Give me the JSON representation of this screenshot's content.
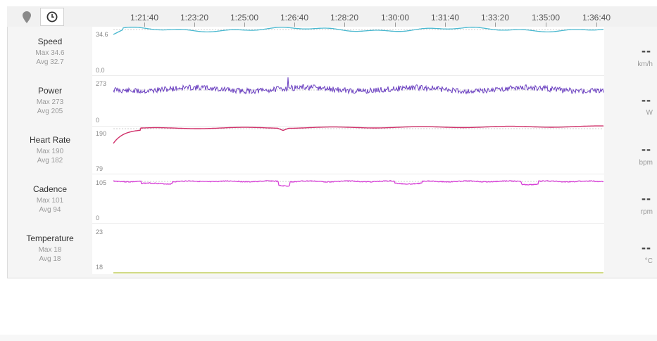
{
  "toolbar": {
    "map_button_icon": "map-pin-icon",
    "time_button_icon": "clock-icon"
  },
  "timeline": {
    "ticks": [
      "1:21:40",
      "1:23:20",
      "1:25:00",
      "1:26:40",
      "1:28:20",
      "1:30:00",
      "1:31:40",
      "1:33:20",
      "1:35:00",
      "1:36:40"
    ]
  },
  "metrics": [
    {
      "name": "Speed",
      "max": "Max 34.6",
      "avg": "Avg 32.7",
      "y_top": "34.6",
      "y_bottom": "0.0",
      "current": "--",
      "unit": "km/h",
      "color": "#4ab8cf"
    },
    {
      "name": "Power",
      "max": "Max 273",
      "avg": "Avg 205",
      "y_top": "273",
      "y_bottom": "0",
      "current": "--",
      "unit": "W",
      "color": "#6a3fc0"
    },
    {
      "name": "Heart Rate",
      "max": "Max 190",
      "avg": "Avg 182",
      "y_top": "190",
      "y_bottom": "79",
      "current": "--",
      "unit": "bpm",
      "color": "#d0306a"
    },
    {
      "name": "Cadence",
      "max": "Max 101",
      "avg": "Avg 94",
      "y_top": "105",
      "y_bottom": "0",
      "current": "--",
      "unit": "rpm",
      "color": "#d63fd6"
    },
    {
      "name": "Temperature",
      "max": "Max 18",
      "avg": "Avg 18",
      "y_top": "23",
      "y_bottom": "18",
      "current": "--",
      "unit": "°C",
      "color": "#b5c23a"
    }
  ]
}
